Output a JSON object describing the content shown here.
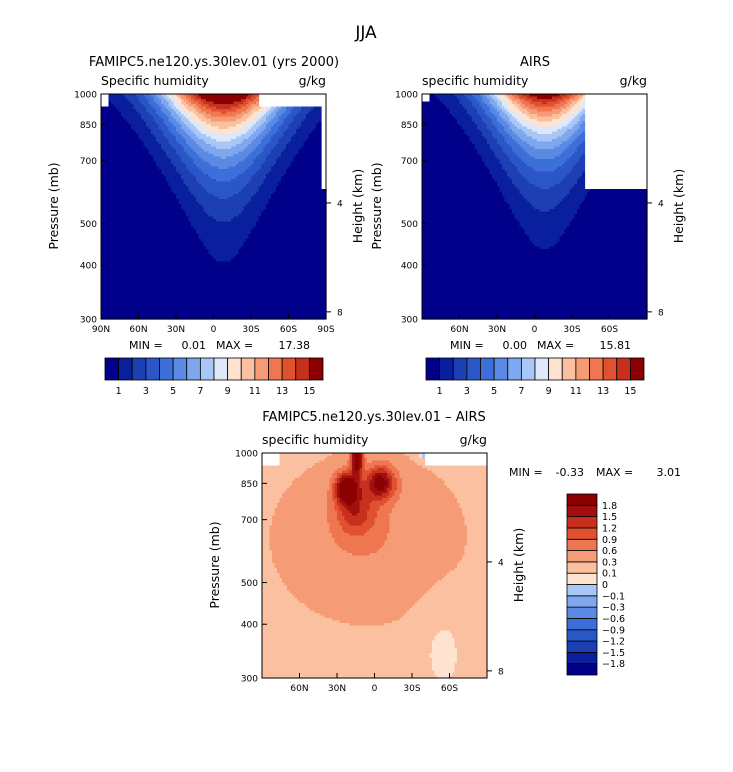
{
  "figure_title": "JJA",
  "chart_data": [
    {
      "type": "heatmap",
      "title": "FAMIPC5.ne120.ys.30lev.01 (yrs 2000)",
      "subtitle_left": "Specific humidity",
      "subtitle_right": "g/kg",
      "xlabel": "",
      "ylabel": "Pressure (mb)",
      "ylabel_right": "Height (km)",
      "x_ticks": [
        "90N",
        "60N",
        "30N",
        "0",
        "30S",
        "60S",
        "90S"
      ],
      "x_tick_values": [
        90,
        60,
        30,
        0,
        -30,
        -60,
        -90
      ],
      "y_ticks": [
        "300",
        "400",
        "500",
        "700",
        "850",
        "1000"
      ],
      "y_tick_values": [
        300,
        400,
        500,
        700,
        850,
        1000
      ],
      "y_right_ticks": [
        "8",
        "4"
      ],
      "y_right_tick_values": [
        8,
        4
      ],
      "xlim": [
        90,
        -90
      ],
      "ylim": [
        1000,
        300
      ],
      "y_scale": "log",
      "stats": {
        "min_label": "MIN =",
        "min": "0.01",
        "max_label": "MAX =",
        "max": "17.38"
      },
      "colorbar": {
        "orientation": "horizontal",
        "levels": [
          1,
          2,
          3,
          4,
          5,
          6,
          7,
          8,
          9,
          10,
          11,
          12,
          13,
          14,
          15
        ],
        "labels": [
          "1",
          "3",
          "5",
          "7",
          "9",
          "11",
          "13",
          "15"
        ],
        "colors": [
          "#00008b",
          "#0a1f9e",
          "#1c3fb4",
          "#2b56c8",
          "#3d6fd8",
          "#5a8ae4",
          "#7ea7ee",
          "#a9c7f6",
          "#dde8fa",
          "#fde3d0",
          "#fbc0a0",
          "#f59b75",
          "#ee7650",
          "#e1502f",
          "#c7301c",
          "#8b0000"
        ]
      },
      "field": {
        "peak_lat": -8,
        "peak_value": 17.38,
        "width_surface_deg": 48,
        "scale_height": 2.2
      }
    },
    {
      "type": "heatmap",
      "title": "AIRS",
      "subtitle_left": "specific humidity",
      "subtitle_right": "g/kg",
      "xlabel": "",
      "ylabel": "Pressure (mb)",
      "ylabel_right": "Height (km)",
      "x_ticks": [
        "60N",
        "30N",
        "0",
        "30S",
        "60S"
      ],
      "x_tick_values": [
        60,
        30,
        0,
        -30,
        -60
      ],
      "y_ticks": [
        "300",
        "400",
        "500",
        "700",
        "850",
        "1000"
      ],
      "y_tick_values": [
        300,
        400,
        500,
        700,
        850,
        1000
      ],
      "y_right_ticks": [
        "8",
        "4"
      ],
      "y_right_tick_values": [
        8,
        4
      ],
      "xlim": [
        90,
        -90
      ],
      "ylim": [
        1000,
        300
      ],
      "y_scale": "log",
      "stats": {
        "min_label": "MIN =",
        "min": "0.00",
        "max_label": "MAX =",
        "max": "15.81"
      },
      "colorbar": {
        "orientation": "horizontal",
        "levels": [
          1,
          2,
          3,
          4,
          5,
          6,
          7,
          8,
          9,
          10,
          11,
          12,
          13,
          14,
          15
        ],
        "labels": [
          "1",
          "3",
          "5",
          "7",
          "9",
          "11",
          "13",
          "15"
        ],
        "colors": [
          "#00008b",
          "#0a1f9e",
          "#1c3fb4",
          "#2b56c8",
          "#3d6fd8",
          "#5a8ae4",
          "#7ea7ee",
          "#a9c7f6",
          "#dde8fa",
          "#fde3d0",
          "#fbc0a0",
          "#f59b75",
          "#ee7650",
          "#e1502f",
          "#c7301c",
          "#8b0000"
        ]
      },
      "field": {
        "peak_lat": -8,
        "peak_value": 15.81,
        "width_surface_deg": 44,
        "scale_height": 2.1
      }
    },
    {
      "type": "heatmap",
      "title": "FAMIPC5.ne120.ys.30lev.01 – AIRS",
      "subtitle_left": "specific humidity",
      "subtitle_right": "g/kg",
      "xlabel": "",
      "ylabel": "Pressure (mb)",
      "ylabel_right": "Height (km)",
      "x_ticks": [
        "60N",
        "30N",
        "0",
        "30S",
        "60S"
      ],
      "x_tick_values": [
        60,
        30,
        0,
        -30,
        -60
      ],
      "y_ticks": [
        "300",
        "400",
        "500",
        "700",
        "850",
        "1000"
      ],
      "y_tick_values": [
        300,
        400,
        500,
        700,
        850,
        1000
      ],
      "y_right_ticks": [
        "8",
        "4"
      ],
      "y_right_tick_values": [
        8,
        4
      ],
      "xlim": [
        90,
        -90
      ],
      "ylim": [
        1000,
        300
      ],
      "y_scale": "log",
      "stats": {
        "min_label": "MIN =",
        "min": "-0.33",
        "max_label": "MAX =",
        "max": "3.01"
      },
      "colorbar": {
        "orientation": "vertical",
        "levels": [
          -1.8,
          -1.5,
          -1.2,
          -0.9,
          -0.6,
          -0.3,
          -0.1,
          0,
          0.1,
          0.3,
          0.6,
          0.9,
          1.2,
          1.5,
          1.8
        ],
        "labels": [
          "1.8",
          "1.5",
          "1.2",
          "0.9",
          "0.6",
          "0.3",
          "0.1",
          "0",
          "−0.1",
          "−0.3",
          "−0.6",
          "−0.9",
          "−1.2",
          "−1.5",
          "−1.8"
        ],
        "colors": [
          "#00008b",
          "#0a1f9e",
          "#1c3fb4",
          "#2b56c8",
          "#3d6fd8",
          "#5a8ae4",
          "#7ea7ee",
          "#a9c7f6",
          "#fde3d0",
          "#fbc0a0",
          "#f59b75",
          "#ee7650",
          "#e1502f",
          "#c7301c",
          "#a30f0f",
          "#8b0000"
        ]
      }
    }
  ]
}
